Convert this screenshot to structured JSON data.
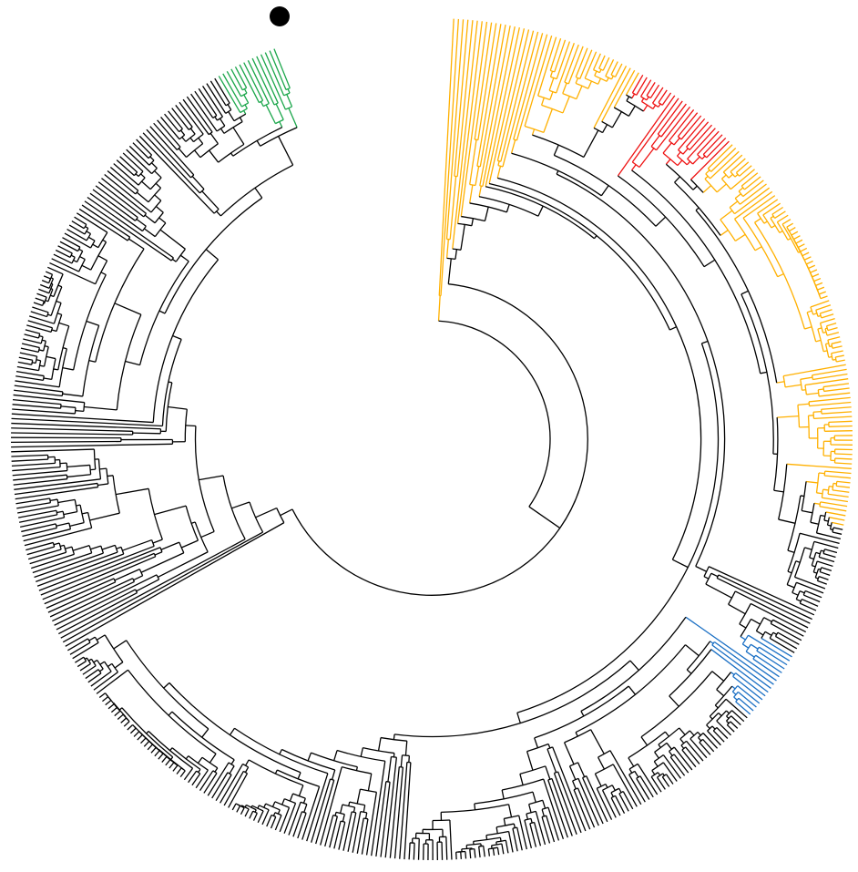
{
  "clades": [
    {
      "color": "#ffb000"
    },
    {
      "color": "#ee1111"
    },
    {
      "color": "#1a6fc4"
    },
    {
      "color": "#1aa64a"
    }
  ]
}
